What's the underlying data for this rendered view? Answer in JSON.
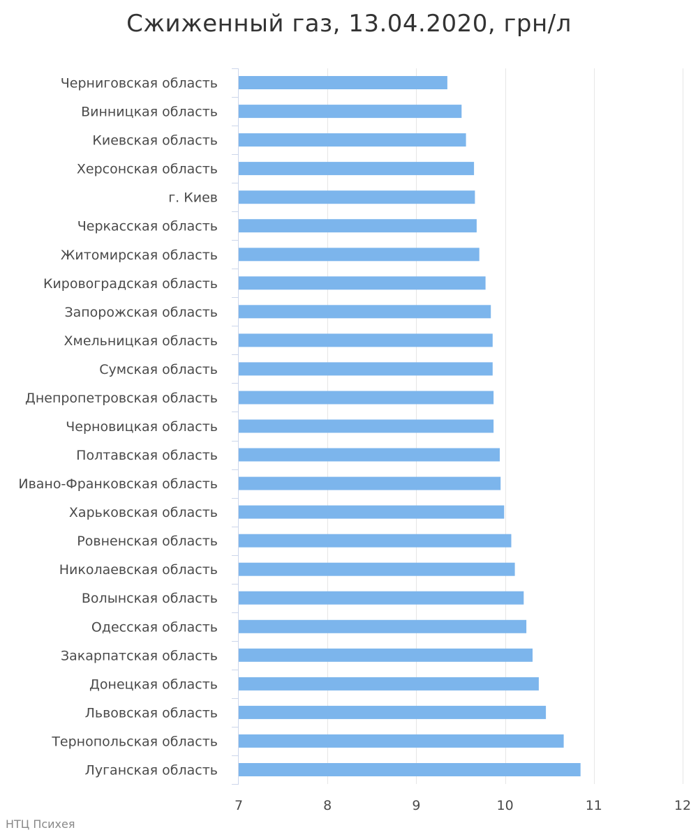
{
  "colors": {
    "bar": "#7cb5ec",
    "grid": "#e6e6e6",
    "axis": "#ccd6eb",
    "text": "#4a4a4a",
    "title": "#333333"
  },
  "credit": "НТЦ Психея",
  "chart_data": {
    "type": "bar",
    "orientation": "horizontal",
    "title": "Сжиженный газ, 13.04.2020, грн/л",
    "xlabel": "",
    "ylabel": "",
    "categories": [
      "Черниговская область",
      "Винницкая область",
      "Киевская область",
      "Херсонская область",
      "г. Киев",
      "Черкасская область",
      "Житомирская область",
      "Кировоградская область",
      "Запорожская область",
      "Хмельницкая область",
      "Сумская область",
      "Днепропетровская область",
      "Черновицкая область",
      "Полтавская область",
      "Ивано-Франковская область",
      "Харьковская область",
      "Ровненская область",
      "Николаевская область",
      "Волынская область",
      "Одесская область",
      "Закарпатская область",
      "Донецкая область",
      "Львовская область",
      "Тернопольская область",
      "Луганская область"
    ],
    "values": [
      9.35,
      9.51,
      9.56,
      9.65,
      9.66,
      9.68,
      9.71,
      9.78,
      9.84,
      9.86,
      9.86,
      9.87,
      9.87,
      9.94,
      9.95,
      9.99,
      10.07,
      10.11,
      10.21,
      10.24,
      10.31,
      10.38,
      10.46,
      10.66,
      10.85
    ],
    "xlim": [
      7,
      12
    ],
    "xticks": [
      7,
      8,
      9,
      10,
      11,
      12
    ],
    "grid": true,
    "legend": "none"
  }
}
